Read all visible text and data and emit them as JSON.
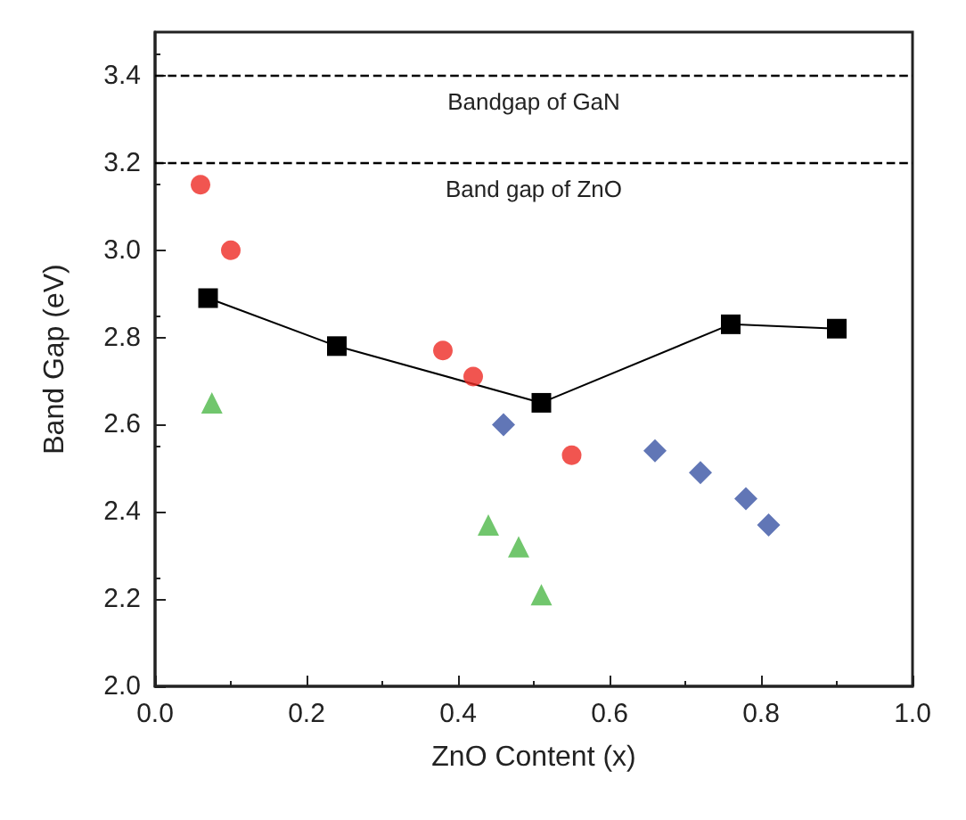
{
  "chart_data": {
    "type": "scatter",
    "xlabel": "ZnO Content (x)",
    "ylabel": "Band Gap (eV)",
    "xlim": [
      0,
      1
    ],
    "ylim": [
      2,
      3.5
    ],
    "xticks": [
      {
        "value": 0,
        "label": "0.0"
      },
      {
        "value": 0.2,
        "label": "0.2"
      },
      {
        "value": 0.4,
        "label": "0.4"
      },
      {
        "value": 0.6,
        "label": "0.6"
      },
      {
        "value": 0.8,
        "label": "0.8"
      },
      {
        "value": 1,
        "label": "1.0"
      }
    ],
    "yticks": [
      {
        "value": 2,
        "label": "2.0"
      },
      {
        "value": 2.2,
        "label": "2.2"
      },
      {
        "value": 2.4,
        "label": "2.4"
      },
      {
        "value": 2.6,
        "label": "2.6"
      },
      {
        "value": 2.8,
        "label": "2.8"
      },
      {
        "value": 3,
        "label": "3.0"
      },
      {
        "value": 3.2,
        "label": "3.2"
      },
      {
        "value": 3.4,
        "label": "3.4"
      }
    ],
    "series": [
      {
        "type": "line",
        "marker": "square",
        "color": "#000000",
        "x": [
          0.07,
          0.24,
          0.51,
          0.76,
          0.9
        ],
        "values": [
          2.89,
          2.78,
          2.65,
          2.83,
          2.82
        ]
      },
      {
        "marker": "circle",
        "color": "#ee2b24",
        "x": [
          0.06,
          0.1,
          0.38,
          0.42,
          0.55
        ],
        "values": [
          3.15,
          3.0,
          2.77,
          2.71,
          2.53
        ]
      },
      {
        "marker": "diamond",
        "color": "#3a54a4",
        "x": [
          0.46,
          0.66,
          0.72,
          0.78,
          0.81
        ],
        "values": [
          2.6,
          2.54,
          2.49,
          2.43,
          2.37
        ]
      },
      {
        "marker": "triangle",
        "color": "#4db848",
        "x": [
          0.075,
          0.44,
          0.48,
          0.51
        ],
        "values": [
          2.65,
          2.37,
          2.32,
          2.21
        ]
      }
    ],
    "ref_lines": [
      {
        "axis": "y",
        "value": 3.4,
        "label": "Bandgap of GaN",
        "line_style": "dashed",
        "color": "#000000"
      },
      {
        "axis": "y",
        "value": 3.2,
        "label": "Band gap of ZnO",
        "line_style": "dashed",
        "color": "#000000"
      }
    ]
  }
}
